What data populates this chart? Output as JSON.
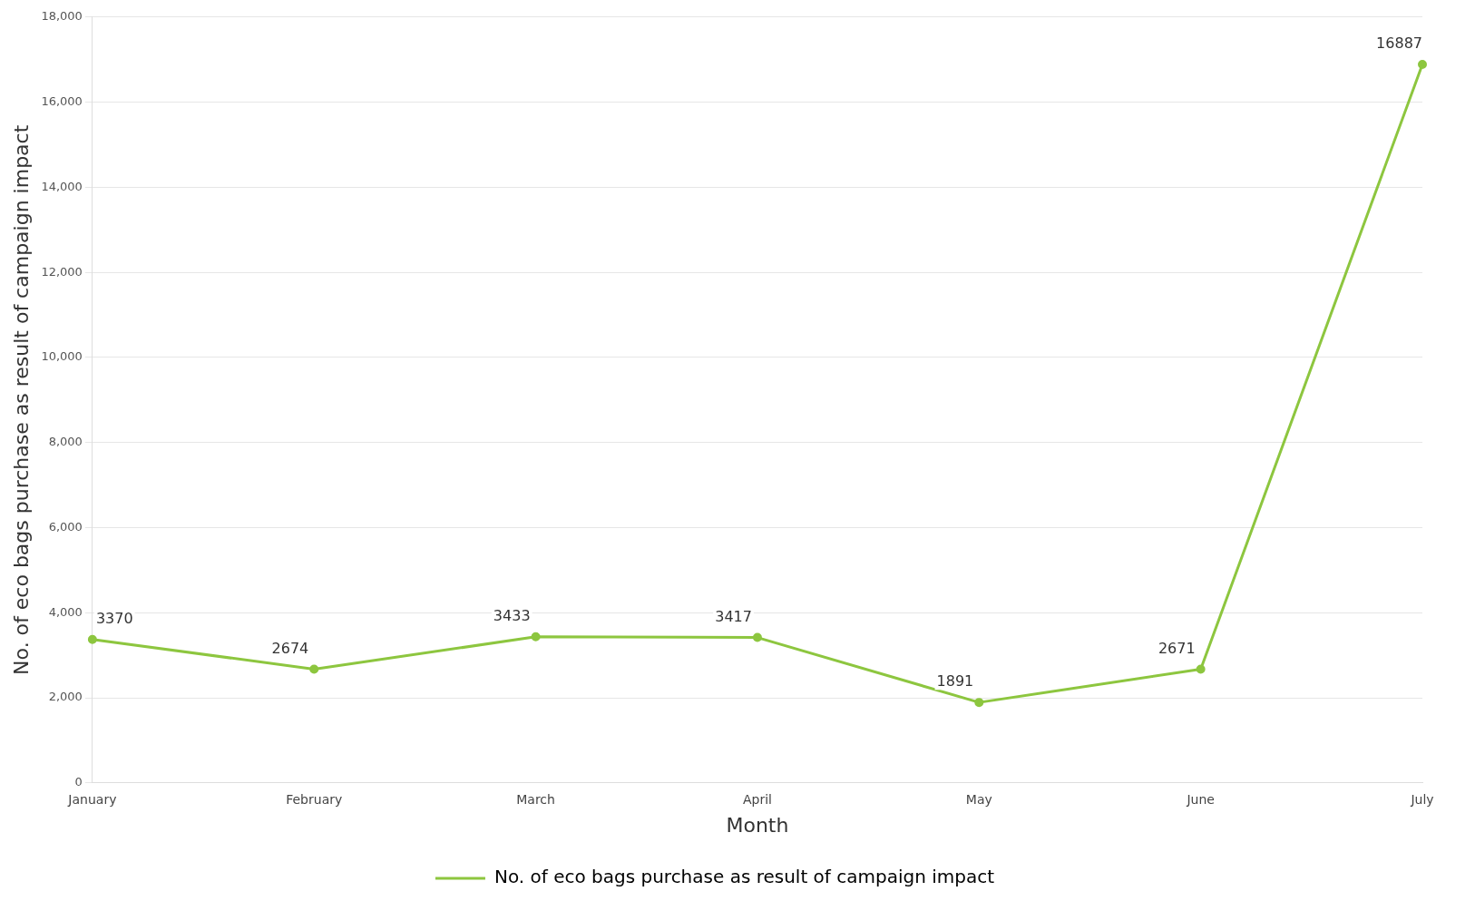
{
  "chart_data": {
    "type": "line",
    "xlabel": "Month",
    "ylabel": "No. of eco bags purchase as result of campaign impact",
    "categories": [
      "January",
      "February",
      "March",
      "April",
      "May",
      "June",
      "July"
    ],
    "series": [
      {
        "name": "No. of eco bags purchase as result of campaign impact",
        "color": "#8dc63f",
        "values": [
          3370,
          2674,
          3433,
          3417,
          1891,
          2671,
          16887
        ]
      }
    ],
    "ylim": [
      0,
      18000
    ],
    "yticks": [
      {
        "value": 0,
        "label": "0"
      },
      {
        "value": 2000,
        "label": "2,000"
      },
      {
        "value": 4000,
        "label": "4,000"
      },
      {
        "value": 6000,
        "label": "6,000"
      },
      {
        "value": 8000,
        "label": "8,000"
      },
      {
        "value": 10000,
        "label": "10,000"
      },
      {
        "value": 12000,
        "label": "12,000"
      },
      {
        "value": 14000,
        "label": "14,000"
      },
      {
        "value": 16000,
        "label": "16,000"
      },
      {
        "value": 18000,
        "label": "18,000"
      }
    ],
    "grid": "y",
    "legend": "bottom",
    "marker": "circle",
    "line_style": "solid",
    "data_labels": true
  }
}
